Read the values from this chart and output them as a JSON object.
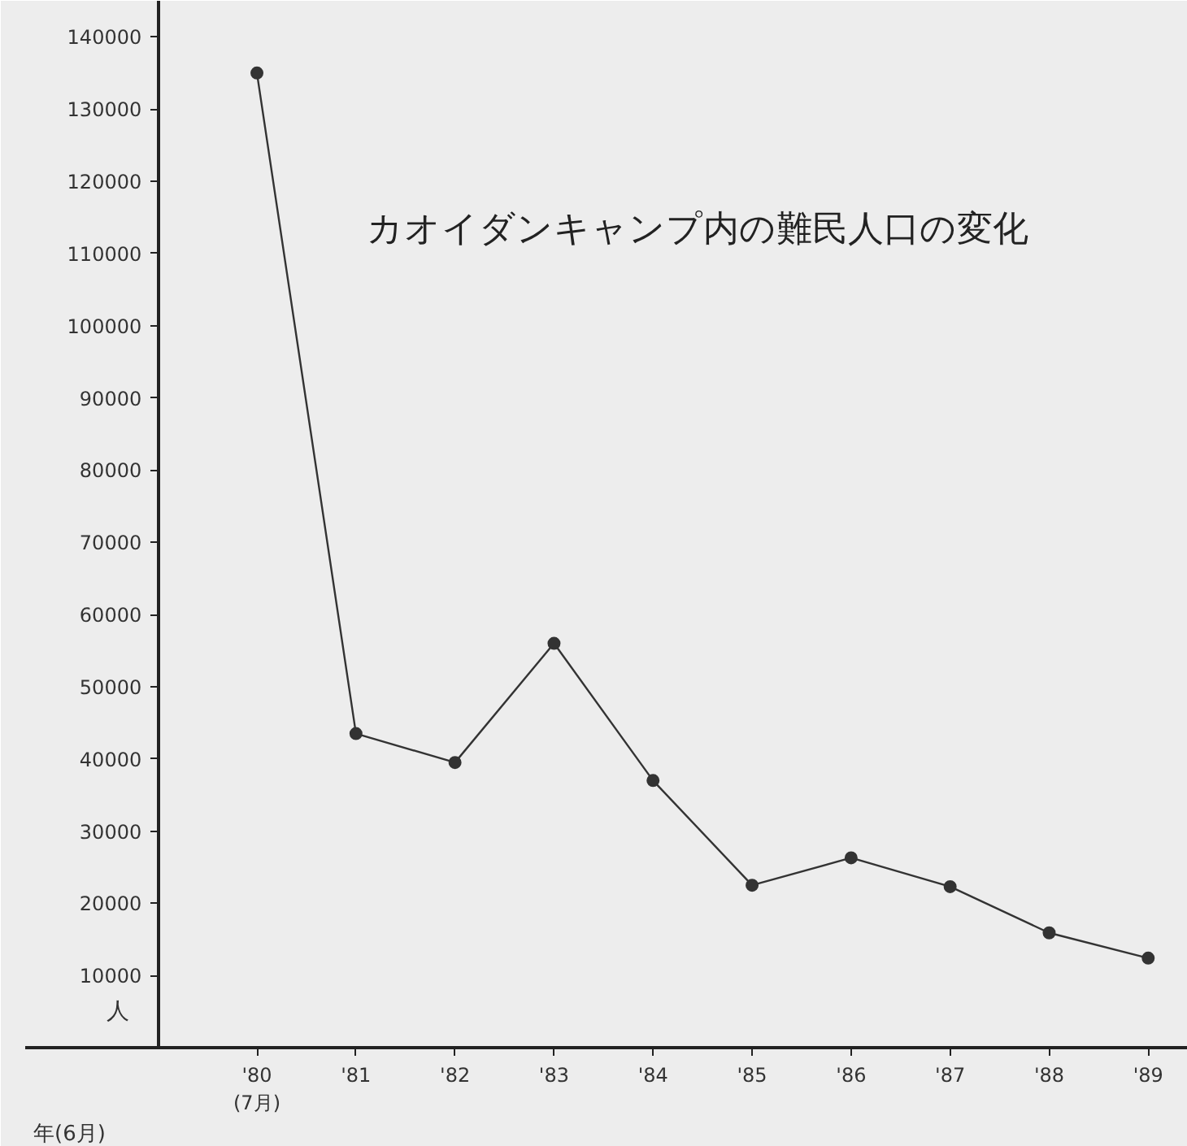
{
  "chart_data": {
    "type": "line",
    "title": "カオイダンキャンプ内の難民人口の変化",
    "xlabel": "年(6月)",
    "ylabel": "人",
    "x": [
      1980,
      1981,
      1982,
      1983,
      1984,
      1985,
      1986,
      1987,
      1988,
      1989
    ],
    "series": [
      {
        "color": "#333333",
        "values": [
          135000,
          43500,
          39500,
          56000,
          37000,
          22500,
          26300,
          22300,
          15900,
          12400
        ]
      }
    ],
    "xlim": [
      1977.66,
      1989.4
    ],
    "xticks": [
      {
        "value": 1980,
        "label": "'80\n(7月)"
      },
      {
        "value": 1981,
        "label": "'81"
      },
      {
        "value": 1982,
        "label": "'82"
      },
      {
        "value": 1983,
        "label": "'83"
      },
      {
        "value": 1984,
        "label": "'84"
      },
      {
        "value": 1985,
        "label": "'85"
      },
      {
        "value": 1986,
        "label": "'86"
      },
      {
        "value": 1987,
        "label": "'87"
      },
      {
        "value": 1988,
        "label": "'88"
      },
      {
        "value": 1989,
        "label": "'89"
      }
    ],
    "ylim": [
      0,
      145000
    ],
    "yticks": [
      10000,
      20000,
      30000,
      40000,
      50000,
      60000,
      70000,
      80000,
      90000,
      100000,
      110000,
      120000,
      130000,
      140000
    ],
    "grid": false,
    "marker": "circle",
    "line_style": "solid"
  }
}
